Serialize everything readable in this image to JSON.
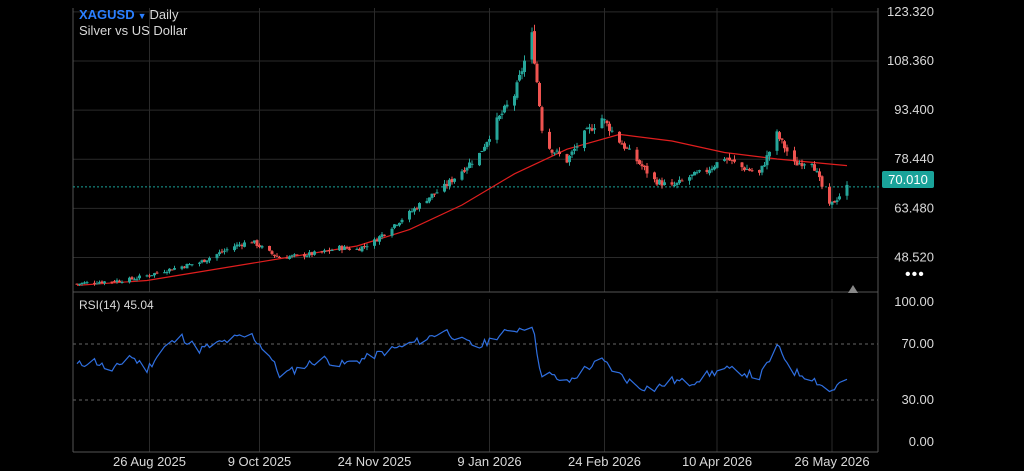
{
  "header": {
    "symbol": "XAGUSD",
    "timeframe": "Daily",
    "description": "Silver vs US Dollar"
  },
  "rsi": {
    "label": "RSI(14)",
    "value": "45.04"
  },
  "last_price": "70.010",
  "colors": {
    "up": "#26a69a",
    "down": "#ef5350",
    "ma": "#e01e1e",
    "rsi": "#2f6fe0",
    "grid": "#2a2a2a",
    "axis": "#555555",
    "badge": "#1aa39a"
  },
  "chart_data": [
    {
      "type": "candlestick",
      "title": "XAGUSD Daily",
      "subtitle": "Silver vs US Dollar",
      "x_ticks": [
        "26 Aug 2025",
        "9 Oct 2025",
        "24 Nov 2025",
        "9 Jan 2026",
        "24 Feb 2026",
        "10 Apr 2026",
        "26 May 2026"
      ],
      "ylim": [
        38.0,
        124.5
      ],
      "y_ticks": [
        48.52,
        63.48,
        78.44,
        93.4,
        108.36,
        123.32
      ],
      "y_tick_labels": [
        "48.520",
        "63.480",
        "78.440",
        "93.400",
        "108.360",
        "123.320"
      ],
      "current_price_line": 70.01,
      "grid": true,
      "moving_average_series": {
        "x": [
          "2025-07-28",
          "2025-08-25",
          "2025-09-22",
          "2025-10-20",
          "2025-11-17",
          "2025-12-08",
          "2025-12-29",
          "2026-01-19",
          "2026-02-09",
          "2026-03-02",
          "2026-03-23",
          "2026-04-13",
          "2026-05-04",
          "2026-05-25",
          "2026-06-01"
        ],
        "values": [
          40.0,
          41.5,
          45.0,
          48.5,
          52.0,
          57.0,
          64.5,
          74.0,
          81.5,
          86.0,
          84.0,
          80.5,
          78.5,
          77.0,
          76.5
        ]
      },
      "close_series": {
        "x": [
          "2025-07-28",
          "2025-08-04",
          "2025-08-11",
          "2025-08-18",
          "2025-08-25",
          "2025-09-01",
          "2025-09-08",
          "2025-09-15",
          "2025-09-22",
          "2025-09-29",
          "2025-10-06",
          "2025-10-13",
          "2025-10-17",
          "2025-10-24",
          "2025-11-03",
          "2025-11-10",
          "2025-11-17",
          "2025-11-24",
          "2025-12-01",
          "2025-12-08",
          "2025-12-15",
          "2025-12-22",
          "2025-12-29",
          "2026-01-05",
          "2026-01-12",
          "2026-01-19",
          "2026-01-26",
          "2026-01-30",
          "2026-02-02",
          "2026-02-09",
          "2026-02-16",
          "2026-02-23",
          "2026-03-02",
          "2026-03-09",
          "2026-03-16",
          "2026-03-23",
          "2026-03-30",
          "2026-04-06",
          "2026-04-13",
          "2026-04-20",
          "2026-04-27",
          "2026-05-04",
          "2026-05-11",
          "2026-05-18",
          "2026-05-25",
          "2026-06-01"
        ],
        "values": [
          40.5,
          41.0,
          41.3,
          41.8,
          43.0,
          44.5,
          45.8,
          47.0,
          49.5,
          52.0,
          53.5,
          50.0,
          48.5,
          49.0,
          50.0,
          51.5,
          51.0,
          53.5,
          58.0,
          62.0,
          66.5,
          70.0,
          75.0,
          80.0,
          90.0,
          98.0,
          116.0,
          88.0,
          82.0,
          78.0,
          86.0,
          91.0,
          84.0,
          78.0,
          72.0,
          70.0,
          73.0,
          75.0,
          79.0,
          76.0,
          74.0,
          86.0,
          77.0,
          78.0,
          64.0,
          70.0
        ]
      }
    },
    {
      "type": "line",
      "title": "RSI(14)",
      "ylim": [
        0,
        100
      ],
      "y_ticks": [
        0,
        30,
        70,
        100
      ],
      "y_tick_labels": [
        "0.00",
        "30.00",
        "70.00",
        "100.00"
      ],
      "reference_lines": [
        30,
        70
      ],
      "series": [
        {
          "name": "RSI(14)",
          "x": [
            "2025-07-28",
            "2025-08-04",
            "2025-08-11",
            "2025-08-18",
            "2025-08-25",
            "2025-09-01",
            "2025-09-08",
            "2025-09-15",
            "2025-09-22",
            "2025-09-29",
            "2025-10-06",
            "2025-10-13",
            "2025-10-17",
            "2025-10-24",
            "2025-11-03",
            "2025-11-10",
            "2025-11-17",
            "2025-11-24",
            "2025-12-01",
            "2025-12-08",
            "2025-12-15",
            "2025-12-22",
            "2025-12-29",
            "2026-01-05",
            "2026-01-12",
            "2026-01-19",
            "2026-01-26",
            "2026-01-30",
            "2026-02-02",
            "2026-02-09",
            "2026-02-16",
            "2026-02-23",
            "2026-03-02",
            "2026-03-09",
            "2026-03-16",
            "2026-03-23",
            "2026-03-30",
            "2026-04-06",
            "2026-04-13",
            "2026-04-20",
            "2026-04-27",
            "2026-05-04",
            "2026-05-11",
            "2026-05-18",
            "2026-05-25",
            "2026-06-01"
          ],
          "values": [
            55,
            58,
            50,
            62,
            52,
            68,
            75,
            66,
            70,
            74,
            76,
            62,
            48,
            52,
            60,
            55,
            58,
            62,
            66,
            70,
            74,
            80,
            72,
            68,
            76,
            80,
            84,
            46,
            48,
            42,
            52,
            58,
            48,
            40,
            38,
            44,
            42,
            48,
            52,
            50,
            46,
            68,
            50,
            46,
            36,
            45.04
          ]
        }
      ]
    }
  ]
}
